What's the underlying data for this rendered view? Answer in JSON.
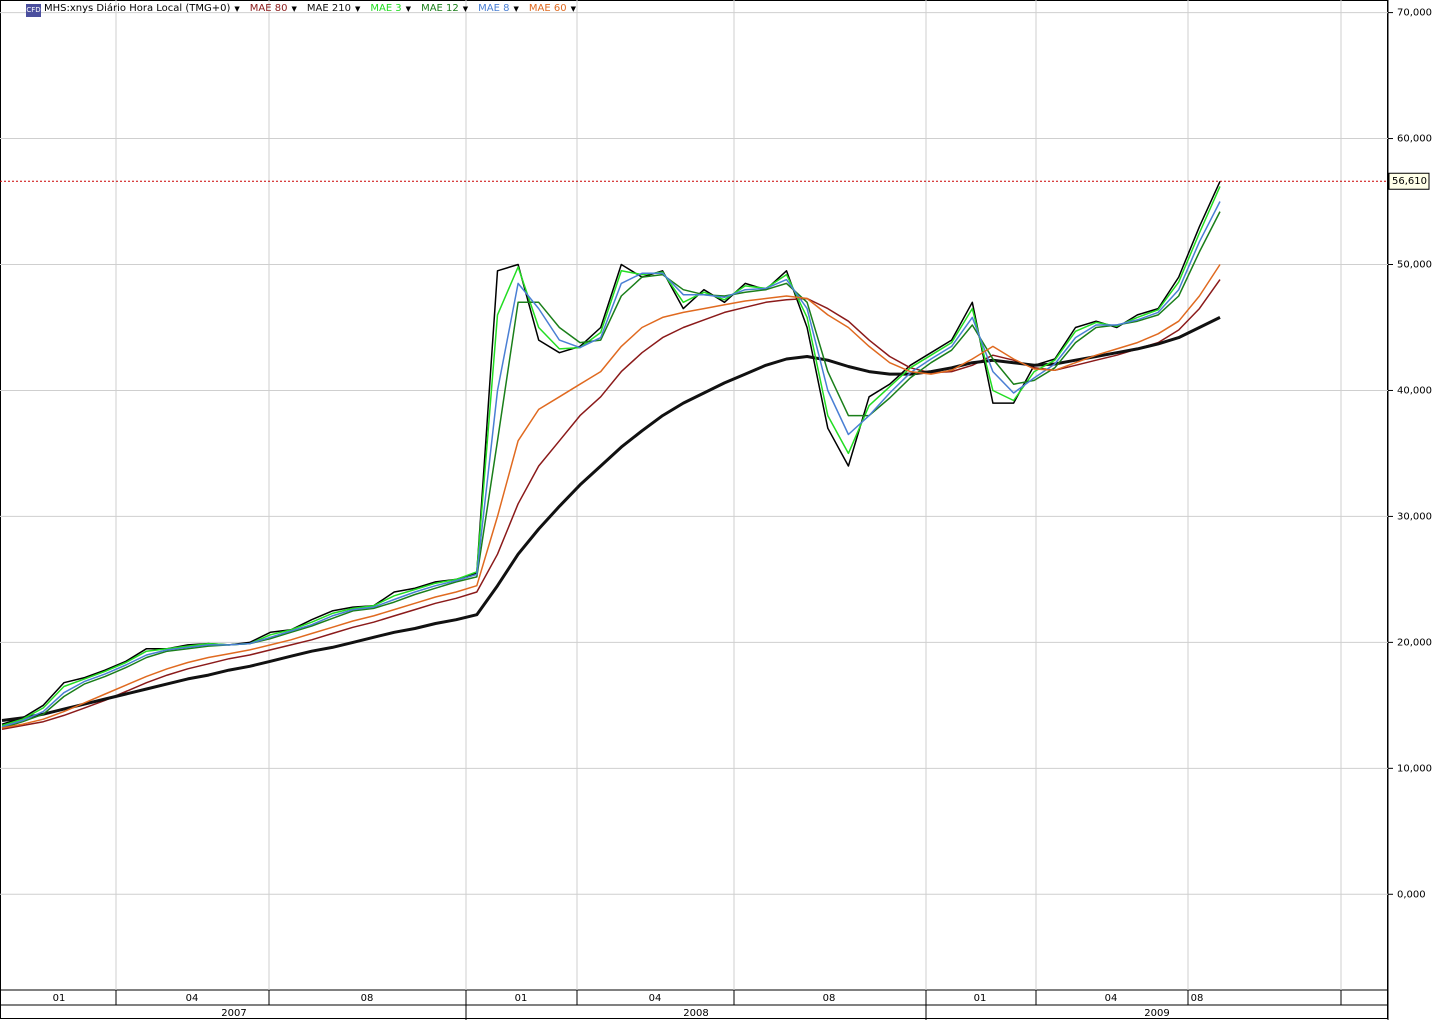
{
  "chart_data": {
    "type": "line",
    "categories": [
      null,
      null,
      null,
      null,
      null,
      null,
      null,
      null,
      null,
      null,
      null,
      null,
      null,
      null,
      null,
      null,
      null,
      null,
      null,
      null,
      null,
      null,
      null,
      null,
      null,
      null,
      null,
      null,
      null,
      null,
      null,
      null,
      null,
      null,
      null,
      null,
      null,
      null,
      null,
      null,
      null,
      null,
      null,
      null,
      null,
      null,
      null,
      null,
      null,
      null,
      null,
      null,
      null,
      null,
      null,
      null,
      null,
      null,
      null,
      null
    ],
    "month_labels": [
      "01",
      "04",
      "08",
      "01",
      "04",
      "08",
      "01",
      "04",
      "08"
    ],
    "year_labels": [
      "2007",
      "2008",
      "2009"
    ],
    "ylim": [
      -7.6,
      71.0
    ],
    "yticks": [
      {
        "value": 0,
        "label": "0,000"
      },
      {
        "value": 10,
        "label": "10,000"
      },
      {
        "value": 20,
        "label": "20,000"
      },
      {
        "value": 30,
        "label": "30,000"
      },
      {
        "value": 40,
        "label": "40,000"
      },
      {
        "value": 50,
        "label": "50,000"
      },
      {
        "value": 60,
        "label": "60,000"
      },
      {
        "value": 70,
        "label": "70,000"
      }
    ],
    "grid": true,
    "last_price": {
      "value": 56.61,
      "label": "56,610"
    },
    "series": [
      {
        "name": "MHS:xnys Diário Hora Local (TMG+0)",
        "color": "#000000",
        "values": [
          13.5,
          14,
          15,
          16.8,
          17.2,
          17.8,
          18.5,
          19.5,
          19.5,
          19.8,
          19.9,
          19.8,
          20,
          20.8,
          21,
          21.8,
          22.5,
          22.8,
          22.9,
          24,
          24.3,
          24.8,
          25,
          25.5,
          49.5,
          50,
          44,
          43,
          43.5,
          45,
          50,
          49,
          49.5,
          46.5,
          48,
          47,
          48.5,
          48,
          49.5,
          45,
          37,
          34,
          39.5,
          40.5,
          42,
          43,
          44,
          47,
          39,
          39,
          42,
          42.5,
          45,
          45.5,
          45,
          46,
          46.5,
          49,
          53,
          56.6
        ]
      },
      {
        "name": "MAE 80",
        "color": "#8b1a1a",
        "values": [
          13.1,
          13.4,
          13.7,
          14.2,
          14.8,
          15.4,
          16.1,
          16.8,
          17.4,
          17.9,
          18.3,
          18.7,
          19,
          19.4,
          19.8,
          20.2,
          20.7,
          21.2,
          21.6,
          22.1,
          22.6,
          23.1,
          23.5,
          24,
          27,
          31,
          34,
          36,
          38,
          39.5,
          41.5,
          43,
          44.2,
          45,
          45.6,
          46.2,
          46.6,
          47,
          47.2,
          47.3,
          46.5,
          45.5,
          44,
          42.7,
          41.8,
          41.4,
          41.5,
          42,
          42.8,
          42.4,
          41.8,
          41.6,
          42,
          42.4,
          42.8,
          43.3,
          43.8,
          44.8,
          46.5,
          48.8
        ]
      },
      {
        "name": "MAE 210",
        "color": "#111111",
        "width": 3,
        "values": [
          13.8,
          14,
          14.3,
          14.7,
          15.1,
          15.5,
          15.9,
          16.3,
          16.7,
          17.1,
          17.4,
          17.8,
          18.1,
          18.5,
          18.9,
          19.3,
          19.6,
          20,
          20.4,
          20.8,
          21.1,
          21.5,
          21.8,
          22.2,
          24.5,
          27,
          29,
          30.8,
          32.5,
          34,
          35.5,
          36.8,
          38,
          39,
          39.8,
          40.6,
          41.3,
          42,
          42.5,
          42.7,
          42.4,
          41.9,
          41.5,
          41.3,
          41.3,
          41.5,
          41.8,
          42.2,
          42.4,
          42.2,
          42,
          42.1,
          42.4,
          42.7,
          43,
          43.3,
          43.7,
          44.2,
          45,
          45.8
        ]
      },
      {
        "name": "MAE 3",
        "color": "#22dd22",
        "values": [
          13.4,
          13.9,
          14.8,
          16.5,
          17.1,
          17.7,
          18.4,
          19.3,
          19.5,
          19.7,
          19.9,
          19.8,
          19.9,
          20.6,
          21,
          21.6,
          22.3,
          22.7,
          22.9,
          23.7,
          24.2,
          24.7,
          25,
          25.6,
          46,
          49.8,
          45,
          43.3,
          43.4,
          44.6,
          49.5,
          49.2,
          49.4,
          47,
          47.8,
          47.2,
          48.3,
          48.1,
          49.2,
          45.8,
          38,
          35,
          38.8,
          40.3,
          41.8,
          42.8,
          43.8,
          46.5,
          40,
          39.2,
          41.5,
          42.4,
          44.7,
          45.4,
          45.1,
          45.8,
          46.4,
          48.6,
          52.5,
          56.2
        ]
      },
      {
        "name": "MAE 12",
        "color": "#1a7f1a",
        "values": [
          13.2,
          13.7,
          14.3,
          15.7,
          16.7,
          17.3,
          18,
          18.8,
          19.3,
          19.5,
          19.7,
          19.8,
          19.9,
          20.3,
          20.8,
          21.3,
          21.9,
          22.5,
          22.7,
          23.2,
          23.8,
          24.3,
          24.8,
          25.2,
          36,
          47,
          47,
          45,
          43.8,
          44,
          47.5,
          49,
          49.2,
          48,
          47.6,
          47.5,
          47.8,
          48,
          48.5,
          47,
          41.5,
          38,
          38,
          39.4,
          41,
          42.2,
          43.2,
          45.2,
          42.5,
          40.5,
          40.8,
          41.8,
          43.8,
          45,
          45.2,
          45.5,
          46,
          47.5,
          51,
          54.2
        ]
      },
      {
        "name": "MAE 8",
        "color": "#4a7fd4",
        "values": [
          13.3,
          13.8,
          14.5,
          16,
          16.9,
          17.5,
          18.2,
          19,
          19.4,
          19.6,
          19.8,
          19.8,
          19.9,
          20.4,
          20.9,
          21.4,
          22.1,
          22.6,
          22.8,
          23.4,
          24,
          24.5,
          24.9,
          25.4,
          40,
          48.5,
          46.5,
          44,
          43.4,
          44.2,
          48.5,
          49.3,
          49.3,
          47.6,
          47.6,
          47.4,
          48,
          48.1,
          48.8,
          46.5,
          40,
          36.5,
          38,
          39.8,
          41.4,
          42.5,
          43.5,
          45.8,
          41.5,
          39.8,
          41,
          42.1,
          44.2,
          45.2,
          45.2,
          45.6,
          46.2,
          48,
          51.8,
          55
        ]
      },
      {
        "name": "MAE 60",
        "color": "#e06a20",
        "values": [
          13.2,
          13.5,
          13.9,
          14.5,
          15.2,
          15.9,
          16.6,
          17.3,
          17.9,
          18.4,
          18.8,
          19.1,
          19.4,
          19.8,
          20.2,
          20.7,
          21.2,
          21.7,
          22.1,
          22.6,
          23.1,
          23.6,
          24,
          24.5,
          30,
          36,
          38.5,
          39.5,
          40.5,
          41.5,
          43.5,
          45,
          45.8,
          46.2,
          46.5,
          46.8,
          47.1,
          47.3,
          47.5,
          47.3,
          46,
          45,
          43.5,
          42.2,
          41.5,
          41.3,
          41.6,
          42.5,
          43.5,
          42.5,
          41.7,
          41.6,
          42.2,
          42.8,
          43.3,
          43.8,
          44.5,
          45.5,
          47.5,
          50
        ]
      }
    ]
  }
}
